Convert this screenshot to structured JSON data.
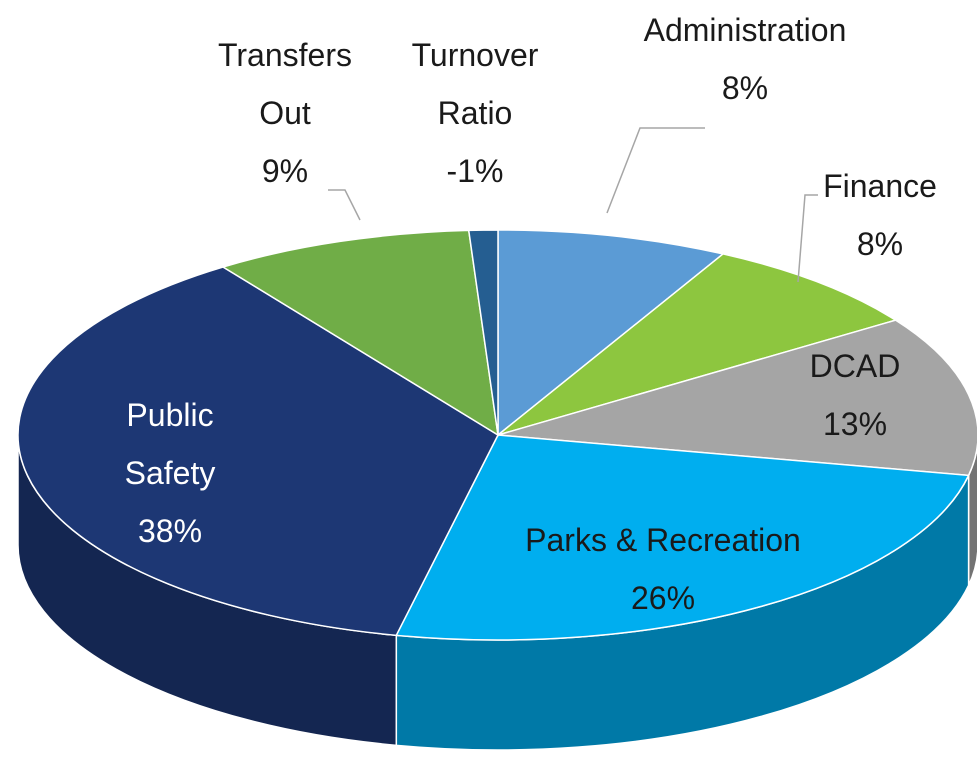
{
  "chart_data": {
    "type": "pie",
    "categories": [
      "Administration",
      "Finance",
      "DCAD",
      "Parks & Recreation",
      "Public Safety",
      "Transfers Out",
      "Turnover Ratio"
    ],
    "values": [
      8,
      8,
      13,
      26,
      38,
      9,
      -1
    ],
    "value_labels": [
      "8%",
      "8%",
      "13%",
      "26%",
      "38%",
      "9%",
      "-1%"
    ],
    "colors": [
      "#5b9bd5",
      "#8dc63f",
      "#a5a5a5",
      "#00aeef",
      "#1d3774",
      "#70ad47",
      "#255e91"
    ]
  }
}
